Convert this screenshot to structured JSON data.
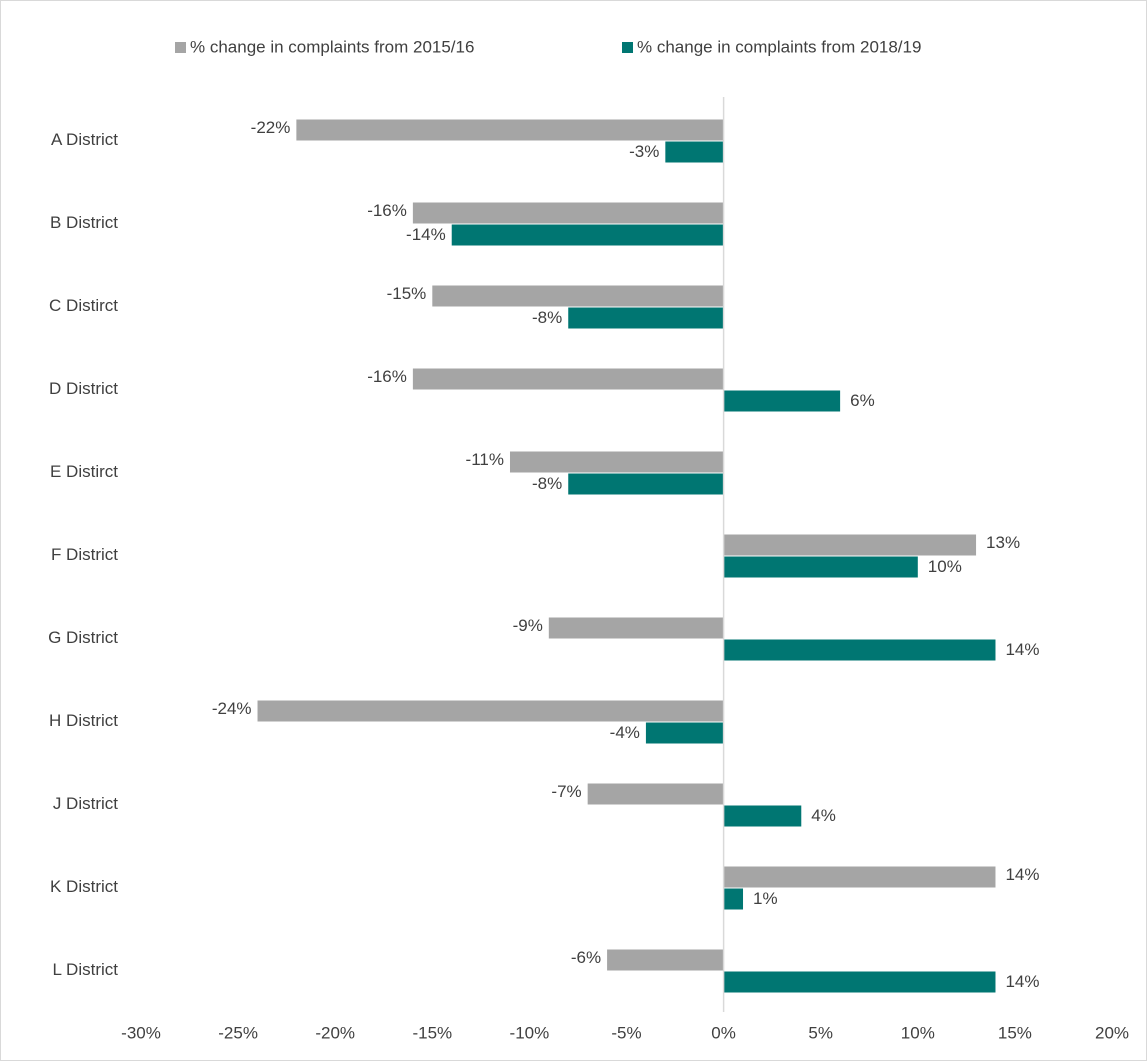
{
  "chart_data": {
    "type": "bar",
    "orientation": "horizontal",
    "categories": [
      "A District",
      "B District",
      "C Distirct",
      "D District",
      "E Distirct",
      "F District",
      "G District",
      "H District",
      "J District",
      "K District",
      "L District"
    ],
    "series": [
      {
        "name": "% change in complaints from 2015/16",
        "color": "#a5a5a5",
        "values": [
          -22,
          -16,
          -15,
          -16,
          -11,
          13,
          -9,
          -24,
          -7,
          14,
          -6
        ],
        "value_labels": [
          "-22%",
          "-16%",
          "-15%",
          "-16%",
          "-11%",
          "13%",
          "-9%",
          "-24%",
          "-7%",
          "14%",
          "-6%"
        ]
      },
      {
        "name": "% change in complaints from 2018/19",
        "color": "#007672",
        "values": [
          -3,
          -14,
          -8,
          6,
          -8,
          10,
          14,
          -4,
          4,
          1,
          14
        ],
        "value_labels": [
          "-3%",
          "-14%",
          "-8%",
          "6%",
          "-8%",
          "10%",
          "14%",
          "-4%",
          "4%",
          "1%",
          "14%"
        ]
      }
    ],
    "xlim": [
      -30,
      20
    ],
    "xticks": [
      {
        "value": -30,
        "label": "-30%"
      },
      {
        "value": -25,
        "label": "-25%"
      },
      {
        "value": -20,
        "label": "-20%"
      },
      {
        "value": -15,
        "label": "-15%"
      },
      {
        "value": -10,
        "label": "-10%"
      },
      {
        "value": -5,
        "label": "-5%"
      },
      {
        "value": 0,
        "label": "0%"
      },
      {
        "value": 5,
        "label": "5%"
      },
      {
        "value": 10,
        "label": "10%"
      },
      {
        "value": 15,
        "label": "15%"
      },
      {
        "value": 20,
        "label": "20%"
      }
    ],
    "legend": "top",
    "grid": false
  }
}
